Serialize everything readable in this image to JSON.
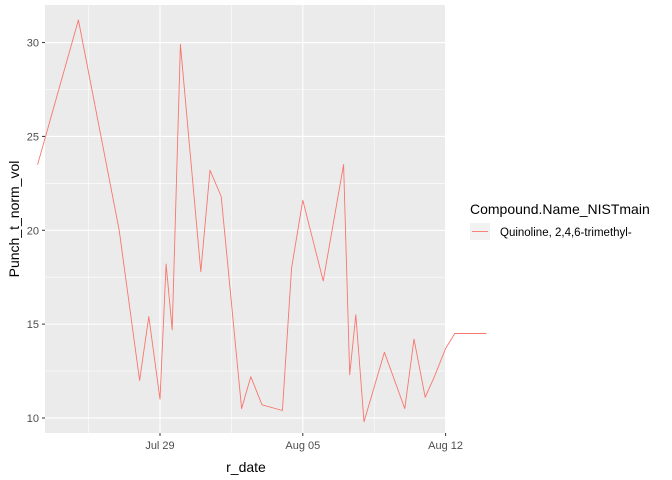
{
  "chart_data": {
    "type": "line",
    "xlabel": "r_date",
    "ylabel": "Punch_t_norm_vol",
    "x_ticks": [
      "Jul 29",
      "Aug 05",
      "Aug 12"
    ],
    "y_ticks": [
      10,
      15,
      20,
      25,
      30
    ],
    "xlim": [
      "2023-07-22",
      "2023-08-12"
    ],
    "ylim": [
      9.2,
      32.0
    ],
    "grid": true,
    "legend": {
      "title": "Compound.Name_NISTmain",
      "position": "right"
    },
    "series": [
      {
        "name": "Quinoline, 2,4,6-trimethyl-",
        "color": "#F8766D",
        "x": [
          "2023-07-23",
          "2023-07-25",
          "2023-07-27",
          "2023-07-28",
          "2023-07-28",
          "2023-07-29",
          "2023-07-29",
          "2023-07-29",
          "2023-07-30",
          "2023-07-31",
          "2023-07-31",
          "2023-08-01",
          "2023-08-02",
          "2023-08-02",
          "2023-08-03",
          "2023-08-04",
          "2023-08-04",
          "2023-08-05",
          "2023-08-06",
          "2023-08-07",
          "2023-08-07",
          "2023-08-07",
          "2023-08-08",
          "2023-08-09",
          "2023-08-10",
          "2023-08-10",
          "2023-08-11",
          "2023-08-11",
          "2023-08-12",
          "2023-08-12",
          "2023-08-13",
          "2023-08-14"
        ],
        "values": [
          23.5,
          31.2,
          20.0,
          12.0,
          15.4,
          11.0,
          18.2,
          14.7,
          29.9,
          17.8,
          23.2,
          21.8,
          10.5,
          12.2,
          10.7,
          10.4,
          18.0,
          21.6,
          17.3,
          23.5,
          12.3,
          15.5,
          9.8,
          13.5,
          10.5,
          14.2,
          11.1,
          12.2,
          13.7,
          14.5,
          14.5,
          14.5
        ]
      }
    ]
  }
}
